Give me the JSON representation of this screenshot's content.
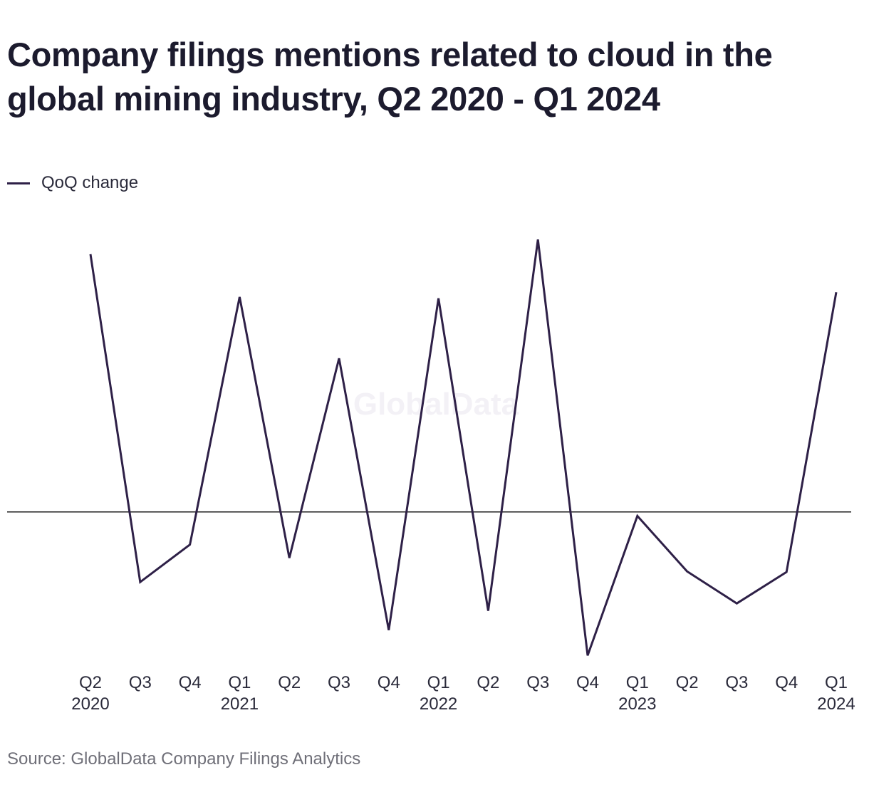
{
  "colors": {
    "series": "#2e2047",
    "baseline": "#1a1a1a",
    "text": "#1c1b2e",
    "axis_text": "#2a2a3a",
    "source_text": "#6f6f78",
    "watermark": "#f3f1f6"
  },
  "watermark": "GlobalData",
  "source": "Source: GlobalData Company Filings Analytics",
  "chart_data": {
    "type": "line",
    "title": "Company filings mentions related to cloud in the global mining industry, Q2 2020 - Q1 2024",
    "xlabel": "",
    "ylabel": "",
    "legend_placement": "top-left",
    "grid": false,
    "y_axis_labels": false,
    "categories": [
      {
        "quarter": "Q2",
        "year": "2020"
      },
      {
        "quarter": "Q3",
        "year": ""
      },
      {
        "quarter": "Q4",
        "year": ""
      },
      {
        "quarter": "Q1",
        "year": "2021"
      },
      {
        "quarter": "Q2",
        "year": ""
      },
      {
        "quarter": "Q3",
        "year": ""
      },
      {
        "quarter": "Q4",
        "year": ""
      },
      {
        "quarter": "Q1",
        "year": "2022"
      },
      {
        "quarter": "Q2",
        "year": ""
      },
      {
        "quarter": "Q3",
        "year": ""
      },
      {
        "quarter": "Q4",
        "year": ""
      },
      {
        "quarter": "Q1",
        "year": "2023"
      },
      {
        "quarter": "Q2",
        "year": ""
      },
      {
        "quarter": "Q3",
        "year": ""
      },
      {
        "quarter": "Q4",
        "year": ""
      },
      {
        "quarter": "Q1",
        "year": "2024"
      }
    ],
    "series": [
      {
        "name": "QoQ change",
        "values": [
          38.6,
          -10.5,
          -4.9,
          32.2,
          -6.9,
          23.0,
          -17.7,
          32.0,
          -14.8,
          40.8,
          -21.5,
          -0.6,
          -8.9,
          -13.7,
          -9.0,
          32.9
        ]
      }
    ],
    "baseline_value": 0,
    "ylim": [
      -22,
      42
    ]
  }
}
